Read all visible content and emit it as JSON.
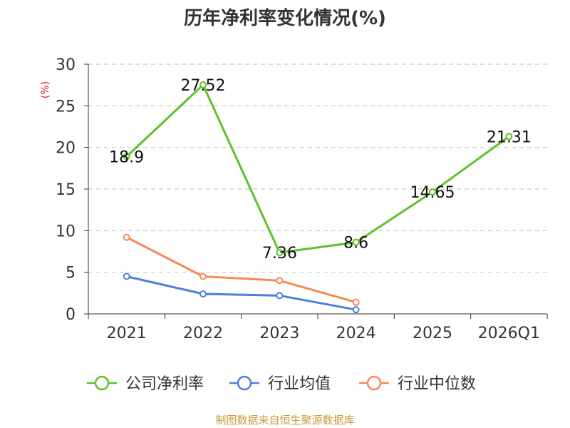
{
  "chart_data": {
    "type": "line",
    "title": "历年净利率变化情况(%)",
    "ylabel": "(%)",
    "xlabel": "",
    "categories": [
      "2021",
      "2022",
      "2023",
      "2024",
      "2025",
      "2026Q1"
    ],
    "ylim": [
      0,
      30
    ],
    "yticks": [
      0,
      5,
      10,
      15,
      20,
      25,
      30
    ],
    "grid": true,
    "legend_position": "bottom",
    "series": [
      {
        "name": "公司净利率",
        "color": "#5cc22a",
        "values": [
          18.9,
          27.52,
          7.36,
          8.6,
          14.65,
          21.31
        ],
        "labels": [
          "18.9",
          "27.52",
          "7.36",
          "8.6",
          "14.65",
          "21.31"
        ]
      },
      {
        "name": "行业均值",
        "color": "#4f7fdc",
        "values": [
          4.5,
          2.4,
          2.2,
          0.5,
          null,
          null
        ]
      },
      {
        "name": "行业中位数",
        "color": "#f58a53",
        "values": [
          9.2,
          4.5,
          4.0,
          1.4,
          null,
          null
        ]
      }
    ]
  },
  "source": "制图数据来自恒生聚源数据库"
}
